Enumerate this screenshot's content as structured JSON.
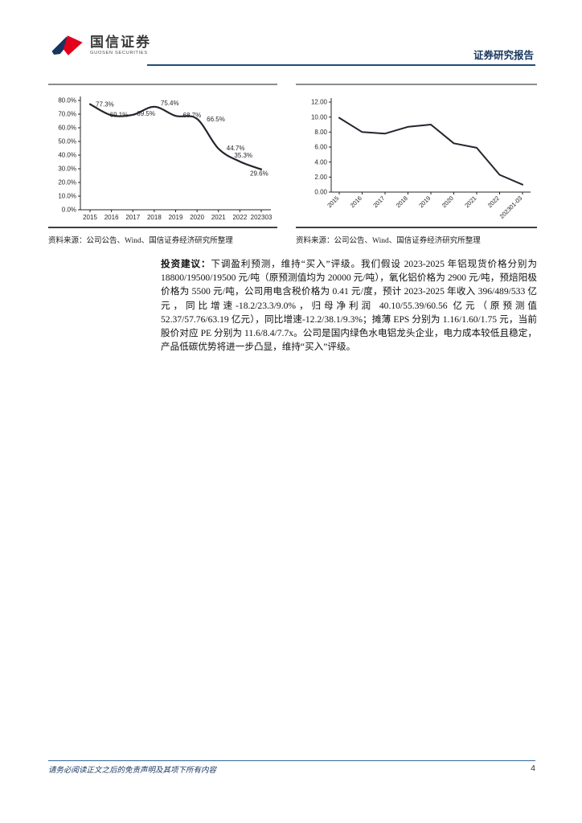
{
  "header": {
    "brand_cn": "国信证券",
    "brand_en": "GUOSEN SECURITIES",
    "report_type": "证券研究报告"
  },
  "chart_data": [
    {
      "type": "line",
      "title": "",
      "xlabel": "",
      "ylabel": "",
      "categories": [
        "2015",
        "2016",
        "2017",
        "2018",
        "2019",
        "2020",
        "2021",
        "2022",
        "202303"
      ],
      "values": [
        77.3,
        69.1,
        69.5,
        75.4,
        68.7,
        66.5,
        44.7,
        35.3,
        29.6
      ],
      "point_labels": [
        "77.3%",
        "69.1%",
        "69.5%",
        "75.4%",
        "68.7%",
        "66.5%",
        "44.7%",
        "35.3%",
        "29.6%"
      ],
      "label_dx": [
        7,
        -2,
        5,
        8,
        9,
        12,
        10,
        -7,
        -14
      ],
      "label_dy": [
        3,
        2,
        1,
        -2,
        2,
        3,
        2,
        -5,
        8
      ],
      "ylim": [
        0,
        80
      ],
      "ytick_step": 10,
      "ytick_format": "percent1",
      "smooth": true,
      "grid": false,
      "legend": false,
      "x_label_rotate": 0,
      "line_color": "#24242e"
    },
    {
      "type": "line",
      "title": "",
      "xlabel": "",
      "ylabel": "",
      "categories": [
        "2015",
        "2016",
        "2017",
        "2018",
        "2019",
        "2020",
        "2021",
        "2022",
        "202301-03"
      ],
      "values": [
        9.9,
        8.0,
        7.8,
        8.7,
        9.0,
        6.5,
        5.9,
        2.3,
        1.0
      ],
      "ylim": [
        0,
        12
      ],
      "ytick_step": 2,
      "ytick_format": "fixed2",
      "smooth": false,
      "grid": false,
      "legend": false,
      "x_label_rotate": -45,
      "line_color": "#24242e"
    }
  ],
  "chart_sources": [
    "资料来源：公司公告、Wind、国信证券经济研究所整理",
    "资料来源：公司公告、Wind、国信证券经济研究所整理"
  ],
  "paragraph": {
    "lead": "投资建议：",
    "body": "下调盈利预测，维持“买入”评级。我们假设 2023-2025 年铝现货价格分别为 18800/19500/19500 元/吨（原预测值均为 20000 元/吨），氧化铝价格为 2900 元/吨，预焙阳极价格为 5500 元/吨，公司用电含税价格为 0.41 元/度，预计 2023-2025 年收入 396/489/533 亿元，同比增速-18.2/23.3/9.0%，归母净利润 40.10/55.39/60.56 亿元（原预测值 52.37/57.76/63.19 亿元），同比增速-12.2/38.1/9.3%；摊薄 EPS 分别为 1.16/1.60/1.75 元，当前股价对应 PE 分别为 11.6/8.4/7.7x。公司是国内绿色水电铝龙头企业，电力成本较低且稳定，产品低碳优势将进一步凸显，维持“买入”评级。"
  },
  "footer": {
    "disclaimer": "请务必阅读正文之后的免责声明及其项下所有内容",
    "page_number": "4"
  },
  "colors": {
    "navy": "#17365D",
    "rule_blue": "#1F4E79",
    "chart_line": "#24242e",
    "logo_blue": "#16355F",
    "logo_red": "#E3001B",
    "text": "#262626"
  }
}
